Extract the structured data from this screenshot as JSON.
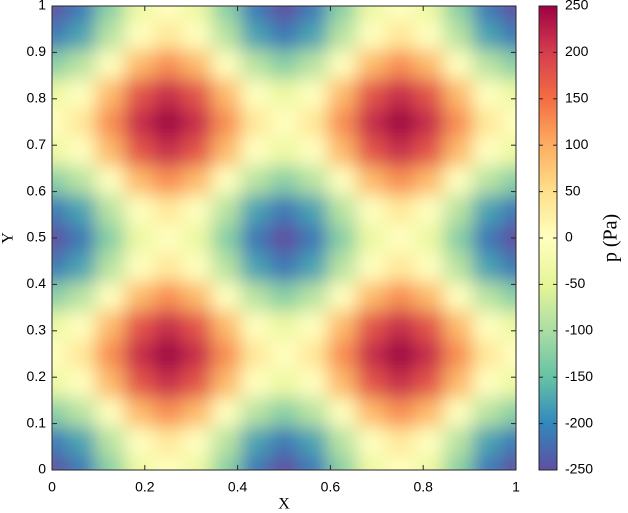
{
  "chart_data": {
    "type": "contourf",
    "x": [
      0,
      0.0625,
      0.125,
      0.1875,
      0.25,
      0.3125,
      0.375,
      0.4375,
      0.5,
      0.5625,
      0.625,
      0.6875,
      0.75,
      0.8125,
      0.875,
      0.9375,
      1
    ],
    "y": [
      0,
      0.0625,
      0.125,
      0.1875,
      0.25,
      0.3125,
      0.375,
      0.4375,
      0.5,
      0.5625,
      0.625,
      0.6875,
      0.75,
      0.8125,
      0.875,
      0.9375,
      1
    ],
    "z": [
      [
        -250,
        -213,
        -125,
        -37,
        0,
        -37,
        -125,
        -213,
        -250,
        -213,
        -125,
        -37,
        0,
        -37,
        -125,
        -213,
        -250
      ],
      [
        -213,
        -177,
        -88,
        0,
        37,
        0,
        -88,
        -177,
        -213,
        -177,
        -88,
        0,
        37,
        0,
        -88,
        -177,
        -213
      ],
      [
        -125,
        -88,
        0,
        88,
        125,
        88,
        0,
        -88,
        -125,
        -88,
        0,
        88,
        125,
        88,
        0,
        -88,
        -125
      ],
      [
        -37,
        0,
        88,
        177,
        213,
        177,
        88,
        0,
        -37,
        0,
        88,
        177,
        213,
        177,
        88,
        0,
        -37
      ],
      [
        0,
        37,
        125,
        213,
        250,
        213,
        125,
        37,
        0,
        37,
        125,
        213,
        250,
        213,
        125,
        37,
        0
      ],
      [
        -37,
        0,
        88,
        177,
        213,
        177,
        88,
        0,
        -37,
        0,
        88,
        177,
        213,
        177,
        88,
        0,
        -37
      ],
      [
        -125,
        -88,
        0,
        88,
        125,
        88,
        0,
        -88,
        -125,
        -88,
        0,
        88,
        125,
        88,
        0,
        -88,
        -125
      ],
      [
        -213,
        -177,
        -88,
        0,
        37,
        0,
        -88,
        -177,
        -213,
        -177,
        -88,
        0,
        37,
        0,
        -88,
        -177,
        -213
      ],
      [
        -250,
        -213,
        -125,
        -37,
        0,
        -37,
        -125,
        -213,
        -250,
        -213,
        -125,
        -37,
        0,
        -37,
        -125,
        -213,
        -250
      ],
      [
        -213,
        -177,
        -88,
        0,
        37,
        0,
        -88,
        -177,
        -213,
        -177,
        -88,
        0,
        37,
        0,
        -88,
        -177,
        -213
      ],
      [
        -125,
        -88,
        0,
        88,
        125,
        88,
        0,
        -88,
        -125,
        -88,
        0,
        88,
        125,
        88,
        0,
        -88,
        -125
      ],
      [
        -37,
        0,
        88,
        177,
        213,
        177,
        88,
        0,
        -37,
        0,
        88,
        177,
        213,
        177,
        88,
        0,
        -37
      ],
      [
        0,
        37,
        125,
        213,
        250,
        213,
        125,
        37,
        0,
        37,
        125,
        213,
        250,
        213,
        125,
        37,
        0
      ],
      [
        -37,
        0,
        88,
        177,
        213,
        177,
        88,
        0,
        -37,
        0,
        88,
        177,
        213,
        177,
        88,
        0,
        -37
      ],
      [
        -125,
        -88,
        0,
        88,
        125,
        88,
        0,
        -88,
        -125,
        -88,
        0,
        88,
        125,
        88,
        0,
        -88,
        -125
      ],
      [
        -213,
        -177,
        -88,
        0,
        37,
        0,
        -88,
        -177,
        -213,
        -177,
        -88,
        0,
        37,
        0,
        -88,
        -177,
        -213
      ],
      [
        -250,
        -213,
        -125,
        -37,
        0,
        -37,
        -125,
        -213,
        -250,
        -213,
        -125,
        -37,
        0,
        -37,
        -125,
        -213,
        -250
      ]
    ],
    "xlim": [
      0,
      1
    ],
    "ylim": [
      0,
      1
    ],
    "xticks": [
      0,
      0.2,
      0.4,
      0.6,
      0.8,
      1
    ],
    "yticks": [
      0,
      0.1,
      0.2,
      0.3,
      0.4,
      0.5,
      0.6,
      0.7,
      0.8,
      0.9,
      1
    ],
    "xlabel": "X",
    "ylabel": "Y",
    "clim": [
      -250,
      250
    ],
    "cticks": [
      -250,
      -200,
      -150,
      -100,
      -50,
      0,
      50,
      100,
      150,
      200,
      250
    ],
    "colorbar_label": "p (Pa)",
    "colormap": [
      "#5e4fa2",
      "#3288bd",
      "#66c2a5",
      "#abdda4",
      "#e6f598",
      "#ffffbf",
      "#fee08b",
      "#fdae61",
      "#f46d43",
      "#d53e4f",
      "#9e0142"
    ]
  }
}
